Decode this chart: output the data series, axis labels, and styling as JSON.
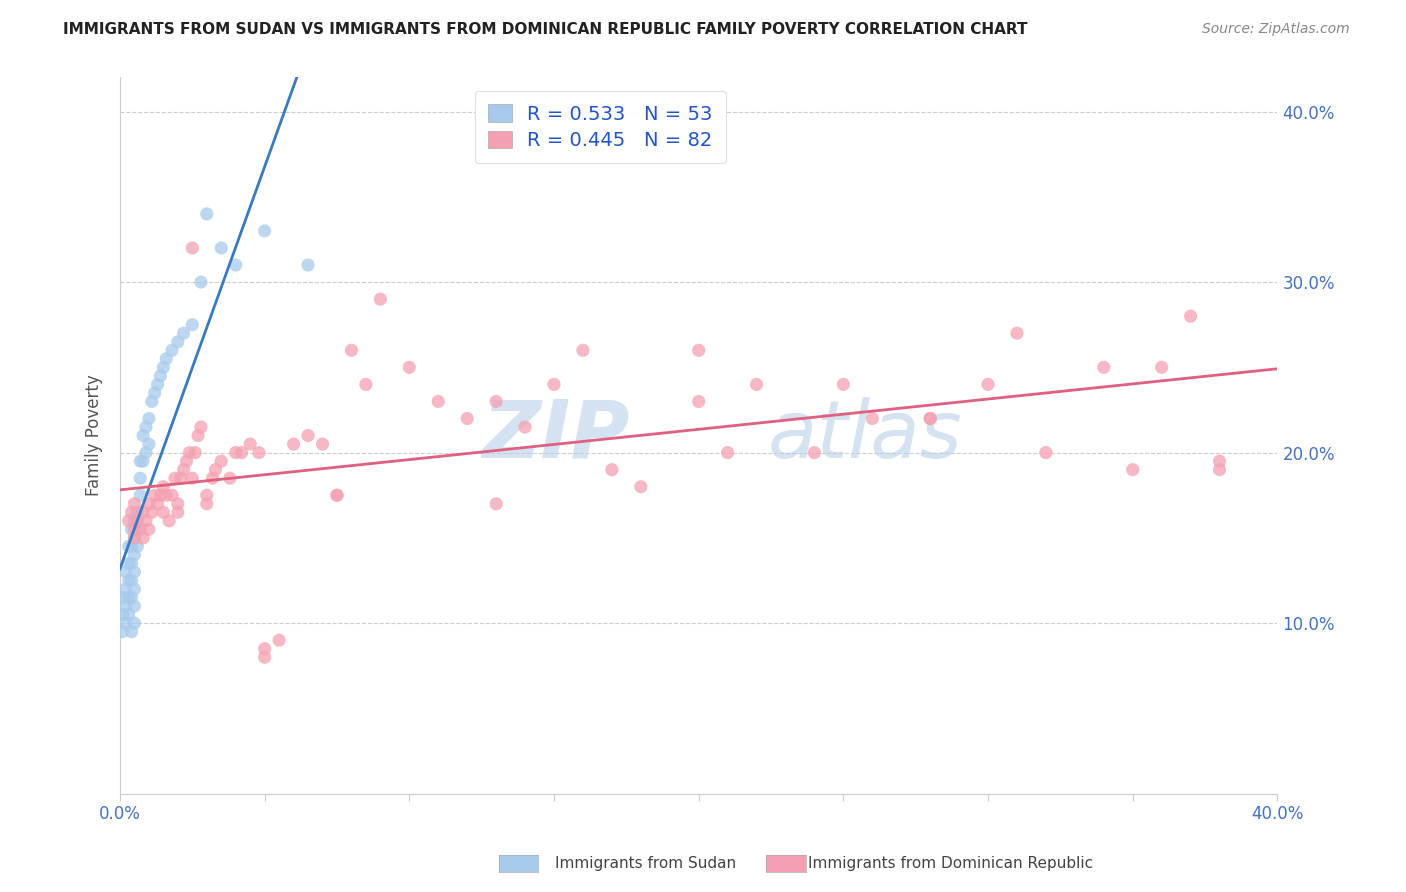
{
  "title": "IMMIGRANTS FROM SUDAN VS IMMIGRANTS FROM DOMINICAN REPUBLIC FAMILY POVERTY CORRELATION CHART",
  "source": "Source: ZipAtlas.com",
  "ylabel": "Family Poverty",
  "xlim": [
    0.0,
    0.4
  ],
  "ylim": [
    0.0,
    0.42
  ],
  "yticks_right": [
    0.1,
    0.2,
    0.3,
    0.4
  ],
  "ytick_labels_right": [
    "10.0%",
    "20.0%",
    "30.0%",
    "40.0%"
  ],
  "legend_r1": "0.533",
  "legend_n1": "53",
  "legend_r2": "0.445",
  "legend_n2": "82",
  "color_sudan": "#a8caec",
  "color_dr": "#f4a0b0",
  "color_sudan_line": "#3a7abf",
  "color_dr_line": "#e06080",
  "watermark_zip": "ZIP",
  "watermark_atlas": "atlas",
  "sudan_x": [
    0.001,
    0.001,
    0.001,
    0.002,
    0.002,
    0.002,
    0.002,
    0.003,
    0.003,
    0.003,
    0.003,
    0.003,
    0.004,
    0.004,
    0.004,
    0.004,
    0.004,
    0.004,
    0.005,
    0.005,
    0.005,
    0.005,
    0.005,
    0.005,
    0.005,
    0.006,
    0.006,
    0.006,
    0.007,
    0.007,
    0.007,
    0.008,
    0.008,
    0.009,
    0.009,
    0.01,
    0.01,
    0.011,
    0.012,
    0.013,
    0.014,
    0.015,
    0.016,
    0.018,
    0.02,
    0.022,
    0.025,
    0.028,
    0.03,
    0.035,
    0.04,
    0.05,
    0.065
  ],
  "sudan_y": [
    0.115,
    0.105,
    0.095,
    0.13,
    0.12,
    0.11,
    0.1,
    0.145,
    0.135,
    0.125,
    0.115,
    0.105,
    0.155,
    0.145,
    0.135,
    0.125,
    0.115,
    0.095,
    0.16,
    0.15,
    0.14,
    0.13,
    0.12,
    0.11,
    0.1,
    0.165,
    0.155,
    0.145,
    0.195,
    0.185,
    0.175,
    0.21,
    0.195,
    0.215,
    0.2,
    0.22,
    0.205,
    0.23,
    0.235,
    0.24,
    0.245,
    0.25,
    0.255,
    0.26,
    0.265,
    0.27,
    0.275,
    0.3,
    0.34,
    0.32,
    0.31,
    0.33,
    0.31
  ],
  "dr_x": [
    0.003,
    0.004,
    0.005,
    0.005,
    0.005,
    0.006,
    0.007,
    0.008,
    0.008,
    0.009,
    0.01,
    0.01,
    0.011,
    0.012,
    0.013,
    0.014,
    0.015,
    0.015,
    0.016,
    0.017,
    0.018,
    0.019,
    0.02,
    0.02,
    0.021,
    0.022,
    0.023,
    0.024,
    0.025,
    0.026,
    0.027,
    0.028,
    0.03,
    0.032,
    0.033,
    0.035,
    0.038,
    0.04,
    0.042,
    0.045,
    0.048,
    0.05,
    0.055,
    0.06,
    0.065,
    0.07,
    0.075,
    0.08,
    0.085,
    0.09,
    0.1,
    0.11,
    0.12,
    0.13,
    0.14,
    0.15,
    0.16,
    0.17,
    0.18,
    0.2,
    0.21,
    0.22,
    0.24,
    0.25,
    0.26,
    0.28,
    0.3,
    0.31,
    0.32,
    0.34,
    0.35,
    0.36,
    0.37,
    0.38,
    0.025,
    0.03,
    0.05,
    0.075,
    0.13,
    0.2,
    0.28,
    0.38
  ],
  "dr_y": [
    0.16,
    0.165,
    0.155,
    0.17,
    0.15,
    0.16,
    0.155,
    0.165,
    0.15,
    0.16,
    0.155,
    0.17,
    0.165,
    0.175,
    0.17,
    0.175,
    0.18,
    0.165,
    0.175,
    0.16,
    0.175,
    0.185,
    0.17,
    0.165,
    0.185,
    0.19,
    0.195,
    0.2,
    0.185,
    0.2,
    0.21,
    0.215,
    0.175,
    0.185,
    0.19,
    0.195,
    0.185,
    0.2,
    0.2,
    0.205,
    0.2,
    0.085,
    0.09,
    0.205,
    0.21,
    0.205,
    0.175,
    0.26,
    0.24,
    0.29,
    0.25,
    0.23,
    0.22,
    0.23,
    0.215,
    0.24,
    0.26,
    0.19,
    0.18,
    0.23,
    0.2,
    0.24,
    0.2,
    0.24,
    0.22,
    0.22,
    0.24,
    0.27,
    0.2,
    0.25,
    0.19,
    0.25,
    0.28,
    0.19,
    0.32,
    0.17,
    0.08,
    0.175,
    0.17,
    0.26,
    0.22,
    0.195
  ]
}
